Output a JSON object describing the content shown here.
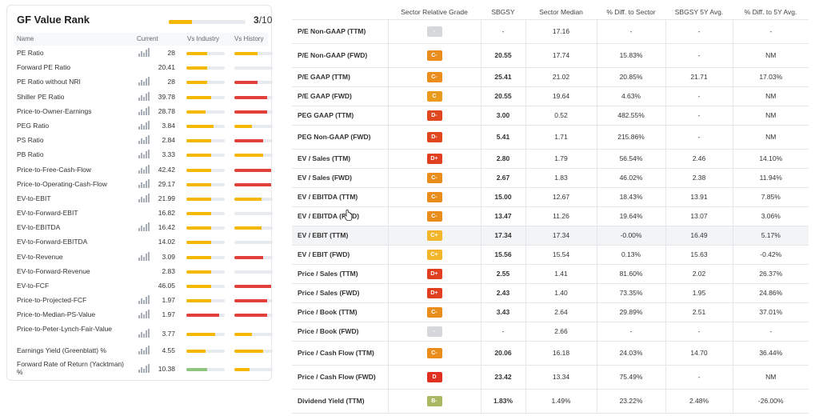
{
  "gf_value_rank": {
    "title": "GF Value Rank",
    "score": "3",
    "score_max": "/10",
    "progress_fraction": 0.3,
    "columns": {
      "name": "Name",
      "current": "Current",
      "vs_industry": "Vs Industry",
      "vs_history": "Vs History"
    },
    "colors": {
      "yellow": "#f5b800",
      "red": "#e2403a",
      "green": "#8fc47f",
      "track": "#e7eaee"
    },
    "rows": [
      {
        "name": "PE Ratio",
        "value": "28",
        "spark": true,
        "ind": 0.55,
        "ind_c": "yellow",
        "his": 0.6,
        "his_c": "yellow"
      },
      {
        "name": "Forward PE Ratio",
        "value": "20.41",
        "spark": false,
        "ind": 0.55,
        "ind_c": "yellow",
        "his": 0,
        "his_c": "yellow"
      },
      {
        "name": "PE Ratio without NRI",
        "value": "28",
        "spark": true,
        "ind": 0.55,
        "ind_c": "yellow",
        "his": 0.6,
        "his_c": "red"
      },
      {
        "name": "Shiller PE Ratio",
        "value": "39.78",
        "spark": true,
        "ind": 0.65,
        "ind_c": "yellow",
        "his": 0.85,
        "his_c": "red"
      },
      {
        "name": "Price-to-Owner-Earnings",
        "value": "28.78",
        "spark": true,
        "ind": 0.5,
        "ind_c": "yellow",
        "his": 0.85,
        "his_c": "red"
      },
      {
        "name": "PEG Ratio",
        "value": "3.84",
        "spark": true,
        "ind": 0.7,
        "ind_c": "yellow",
        "his": 0.45,
        "his_c": "yellow"
      },
      {
        "name": "PS Ratio",
        "value": "2.84",
        "spark": true,
        "ind": 0.65,
        "ind_c": "yellow",
        "his": 0.75,
        "his_c": "red"
      },
      {
        "name": "PB Ratio",
        "value": "3.33",
        "spark": true,
        "ind": 0.65,
        "ind_c": "yellow",
        "his": 0.75,
        "his_c": "yellow"
      },
      {
        "name": "Price-to-Free-Cash-Flow",
        "value": "42.42",
        "spark": true,
        "ind": 0.65,
        "ind_c": "yellow",
        "his": 0.95,
        "his_c": "red"
      },
      {
        "name": "Price-to-Operating-Cash-Flow",
        "value": "29.17",
        "spark": true,
        "ind": 0.65,
        "ind_c": "yellow",
        "his": 0.95,
        "his_c": "red"
      },
      {
        "name": "EV-to-EBIT",
        "value": "21.99",
        "spark": true,
        "ind": 0.65,
        "ind_c": "yellow",
        "his": 0.7,
        "his_c": "yellow"
      },
      {
        "name": "EV-to-Forward-EBIT",
        "value": "16.82",
        "spark": false,
        "ind": 0.65,
        "ind_c": "yellow",
        "his": 0,
        "his_c": "yellow"
      },
      {
        "name": "EV-to-EBITDA",
        "value": "16.42",
        "spark": true,
        "ind": 0.65,
        "ind_c": "yellow",
        "his": 0.7,
        "his_c": "yellow"
      },
      {
        "name": "EV-to-Forward-EBITDA",
        "value": "14.02",
        "spark": false,
        "ind": 0.65,
        "ind_c": "yellow",
        "his": 0,
        "his_c": "yellow"
      },
      {
        "name": "EV-to-Revenue",
        "value": "3.09",
        "spark": true,
        "ind": 0.65,
        "ind_c": "yellow",
        "his": 0.75,
        "his_c": "red"
      },
      {
        "name": "EV-to-Forward-Revenue",
        "value": "2.83",
        "spark": false,
        "ind": 0.65,
        "ind_c": "yellow",
        "his": 0,
        "his_c": "yellow"
      },
      {
        "name": "EV-to-FCF",
        "value": "46.05",
        "spark": false,
        "ind": 0.65,
        "ind_c": "yellow",
        "his": 0.95,
        "his_c": "red"
      },
      {
        "name": "Price-to-Projected-FCF",
        "value": "1.97",
        "spark": true,
        "ind": 0.65,
        "ind_c": "yellow",
        "his": 0.85,
        "his_c": "red"
      },
      {
        "name": "Price-to-Median-PS-Value",
        "value": "1.97",
        "spark": true,
        "ind": 0.85,
        "ind_c": "red",
        "his": 0.85,
        "his_c": "red"
      },
      {
        "name": "Price-to-Peter-Lynch-Fair-Value",
        "value": "3.77",
        "spark": true,
        "ind": 0.75,
        "ind_c": "yellow",
        "his": 0.45,
        "his_c": "yellow",
        "tall": true
      },
      {
        "name": "Earnings Yield (Greenblatt) %",
        "value": "4.55",
        "spark": true,
        "ind": 0.5,
        "ind_c": "yellow",
        "his": 0.75,
        "his_c": "yellow"
      },
      {
        "name": "Forward Rate of Return (Yacktman) %",
        "value": "10.38",
        "spark": true,
        "ind": 0.55,
        "ind_c": "green",
        "his": 0.4,
        "his_c": "yellow",
        "tall": true
      }
    ]
  },
  "valuation_table": {
    "headers": [
      "",
      "Sector Relative Grade",
      "SBGSY",
      "Sector Median",
      "% Diff. to Sector",
      "SBGSY 5Y Avg.",
      "% Diff. to 5Y Avg."
    ],
    "grade_colors": {
      "-": "#d5d7da",
      "C": "#ea9a1c",
      "C-": "#ea8d1c",
      "C+": "#f3b52a",
      "D-": "#e0471f",
      "D": "#e0301f",
      "D+": "#e0401f",
      "B-": "#a9b861"
    },
    "rows": [
      {
        "metric": "P/E Non-GAAP (TTM)",
        "grade": "-",
        "sbgsy": "-",
        "median": "17.16",
        "diff": "-",
        "avg5y": "-",
        "diff5y": "-"
      },
      {
        "metric": "P/E Non-GAAP (FWD)",
        "grade": "C-",
        "sbgsy": "20.55",
        "median": "17.74",
        "diff": "15.83%",
        "avg5y": "-",
        "diff5y": "NM"
      },
      {
        "metric": "P/E GAAP (TTM)",
        "grade": "C-",
        "sbgsy": "25.41",
        "median": "21.02",
        "diff": "20.85%",
        "avg5y": "21.71",
        "diff5y": "17.03%"
      },
      {
        "metric": "P/E GAAP (FWD)",
        "grade": "C",
        "sbgsy": "20.55",
        "median": "19.64",
        "diff": "4.63%",
        "avg5y": "-",
        "diff5y": "NM"
      },
      {
        "metric": "PEG GAAP (TTM)",
        "grade": "D-",
        "sbgsy": "3.00",
        "median": "0.52",
        "diff": "482.55%",
        "avg5y": "-",
        "diff5y": "NM"
      },
      {
        "metric": "PEG Non-GAAP (FWD)",
        "grade": "D-",
        "sbgsy": "5.41",
        "median": "1.71",
        "diff": "215.86%",
        "avg5y": "-",
        "diff5y": "NM"
      },
      {
        "metric": "EV / Sales (TTM)",
        "grade": "D+",
        "sbgsy": "2.80",
        "median": "1.79",
        "diff": "56.54%",
        "avg5y": "2.46",
        "diff5y": "14.10%"
      },
      {
        "metric": "EV / Sales (FWD)",
        "grade": "C-",
        "sbgsy": "2.67",
        "median": "1.83",
        "diff": "46.02%",
        "avg5y": "2.38",
        "diff5y": "11.94%"
      },
      {
        "metric": "EV / EBITDA (TTM)",
        "grade": "C-",
        "sbgsy": "15.00",
        "median": "12.67",
        "diff": "18.43%",
        "avg5y": "13.91",
        "diff5y": "7.85%"
      },
      {
        "metric": "EV / EBITDA (FWD)",
        "grade": "C-",
        "sbgsy": "13.47",
        "median": "11.26",
        "diff": "19.64%",
        "avg5y": "13.07",
        "diff5y": "3.06%"
      },
      {
        "metric": "EV / EBIT (TTM)",
        "grade": "C+",
        "sbgsy": "17.34",
        "median": "17.34",
        "diff": "-0.00%",
        "avg5y": "16.49",
        "diff5y": "5.17%",
        "highlight": true
      },
      {
        "metric": "EV / EBIT (FWD)",
        "grade": "C+",
        "sbgsy": "15.56",
        "median": "15.54",
        "diff": "0.13%",
        "avg5y": "15.63",
        "diff5y": "-0.42%"
      },
      {
        "metric": "Price / Sales (TTM)",
        "grade": "D+",
        "sbgsy": "2.55",
        "median": "1.41",
        "diff": "81.60%",
        "avg5y": "2.02",
        "diff5y": "26.37%"
      },
      {
        "metric": "Price / Sales (FWD)",
        "grade": "D+",
        "sbgsy": "2.43",
        "median": "1.40",
        "diff": "73.35%",
        "avg5y": "1.95",
        "diff5y": "24.86%"
      },
      {
        "metric": "Price / Book (TTM)",
        "grade": "C-",
        "sbgsy": "3.43",
        "median": "2.64",
        "diff": "29.89%",
        "avg5y": "2.51",
        "diff5y": "37.01%"
      },
      {
        "metric": "Price / Book (FWD)",
        "grade": "-",
        "sbgsy": "-",
        "median": "2.66",
        "diff": "-",
        "avg5y": "-",
        "diff5y": "-"
      },
      {
        "metric": "Price / Cash Flow (TTM)",
        "grade": "C-",
        "sbgsy": "20.06",
        "median": "16.18",
        "diff": "24.03%",
        "avg5y": "14.70",
        "diff5y": "36.44%"
      },
      {
        "metric": "Price / Cash Flow (FWD)",
        "grade": "D",
        "sbgsy": "23.42",
        "median": "13.34",
        "diff": "75.49%",
        "avg5y": "-",
        "diff5y": "NM"
      },
      {
        "metric": "Dividend Yield (TTM)",
        "grade": "B-",
        "sbgsy": "1.83%",
        "median": "1.49%",
        "diff": "23.22%",
        "avg5y": "2.48%",
        "diff5y": "-26.00%"
      }
    ]
  }
}
